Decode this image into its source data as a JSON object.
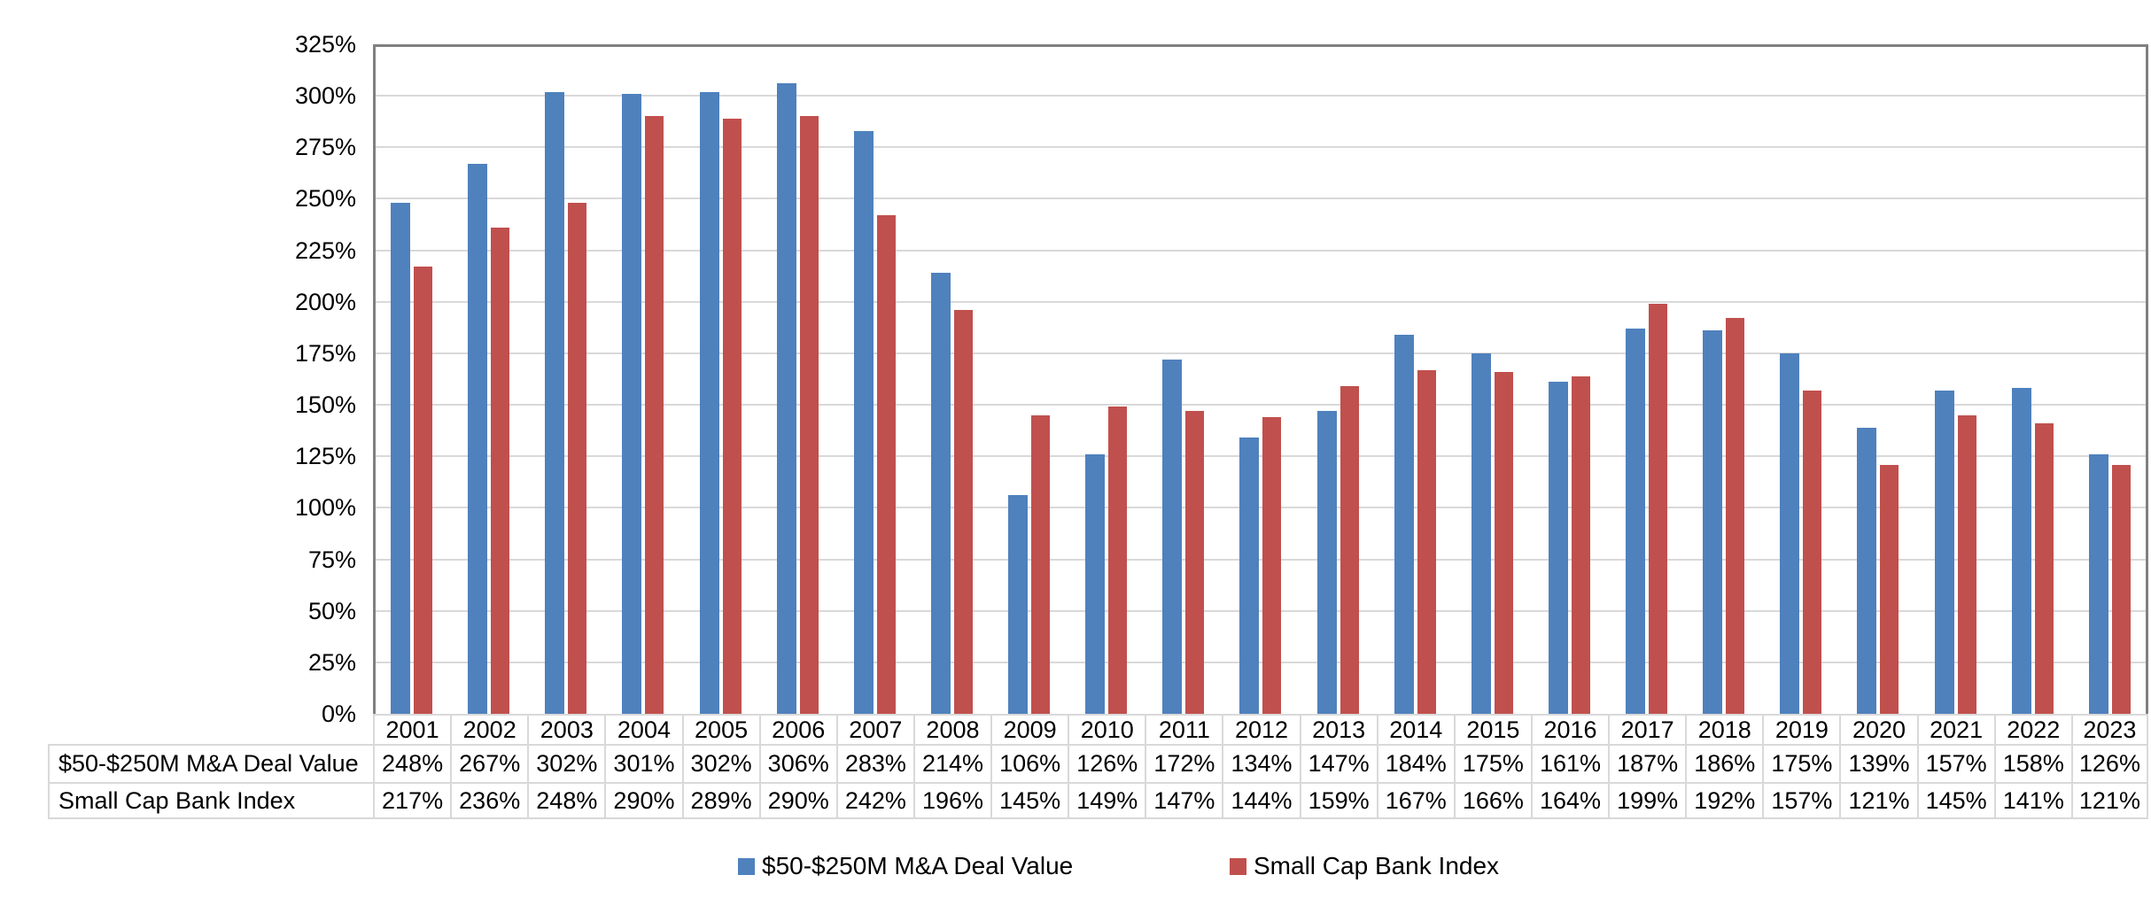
{
  "chart_data": {
    "type": "bar",
    "title": "",
    "categories": [
      "2001",
      "2002",
      "2003",
      "2004",
      "2005",
      "2006",
      "2007",
      "2008",
      "2009",
      "2010",
      "2011",
      "2012",
      "2013",
      "2014",
      "2015",
      "2016",
      "2017",
      "2018",
      "2019",
      "2020",
      "2021",
      "2022",
      "2023"
    ],
    "series": [
      {
        "name": "$50-$250M M&A Deal Value",
        "color": "#4F81BD",
        "values": [
          248,
          267,
          302,
          301,
          302,
          306,
          283,
          214,
          106,
          126,
          172,
          134,
          147,
          184,
          175,
          161,
          187,
          186,
          175,
          139,
          157,
          158,
          126
        ]
      },
      {
        "name": "Small Cap Bank Index",
        "color": "#C0504D",
        "values": [
          217,
          236,
          248,
          290,
          289,
          290,
          242,
          196,
          145,
          149,
          147,
          144,
          159,
          167,
          166,
          164,
          199,
          192,
          157,
          121,
          145,
          141,
          121
        ]
      }
    ],
    "y_axis": {
      "min": 0,
      "max": 325,
      "step": 25,
      "suffix": "%",
      "tick_labels": [
        "0%",
        "25%",
        "50%",
        "75%",
        "100%",
        "125%",
        "150%",
        "175%",
        "200%",
        "225%",
        "250%",
        "275%",
        "300%",
        "325%"
      ]
    },
    "grid": true,
    "legend_position": "bottom",
    "data_table": {
      "shown": true,
      "header_row": [
        "2001",
        "2002",
        "2003",
        "2004",
        "2005",
        "2006",
        "2007",
        "2008",
        "2009",
        "2010",
        "2011",
        "2012",
        "2013",
        "2014",
        "2015",
        "2016",
        "2017",
        "2018",
        "2019",
        "2020",
        "2021",
        "2022",
        "2023"
      ],
      "rows": [
        {
          "label": "$50-$250M M&A Deal Value",
          "values": [
            "248%",
            "267%",
            "302%",
            "301%",
            "302%",
            "306%",
            "283%",
            "214%",
            "106%",
            "126%",
            "172%",
            "134%",
            "147%",
            "184%",
            "175%",
            "161%",
            "187%",
            "186%",
            "175%",
            "139%",
            "157%",
            "158%",
            "126%"
          ]
        },
        {
          "label": "Small Cap Bank Index",
          "values": [
            "217%",
            "236%",
            "248%",
            "290%",
            "289%",
            "290%",
            "242%",
            "196%",
            "145%",
            "149%",
            "147%",
            "144%",
            "159%",
            "167%",
            "166%",
            "164%",
            "199%",
            "192%",
            "157%",
            "121%",
            "145%",
            "141%",
            "121%"
          ]
        }
      ]
    }
  },
  "legend": {
    "items": [
      {
        "label": "$50-$250M M&A Deal Value",
        "color": "#4F81BD"
      },
      {
        "label": "Small Cap Bank Index",
        "color": "#C0504D"
      }
    ]
  },
  "colors": {
    "series_blue": "#4F81BD",
    "series_red": "#C0504D",
    "gridline": "#D9D9D9",
    "plot_border": "#808080",
    "table_border": "#D9D9D9",
    "text": "#000000",
    "background": "#FFFFFF"
  }
}
